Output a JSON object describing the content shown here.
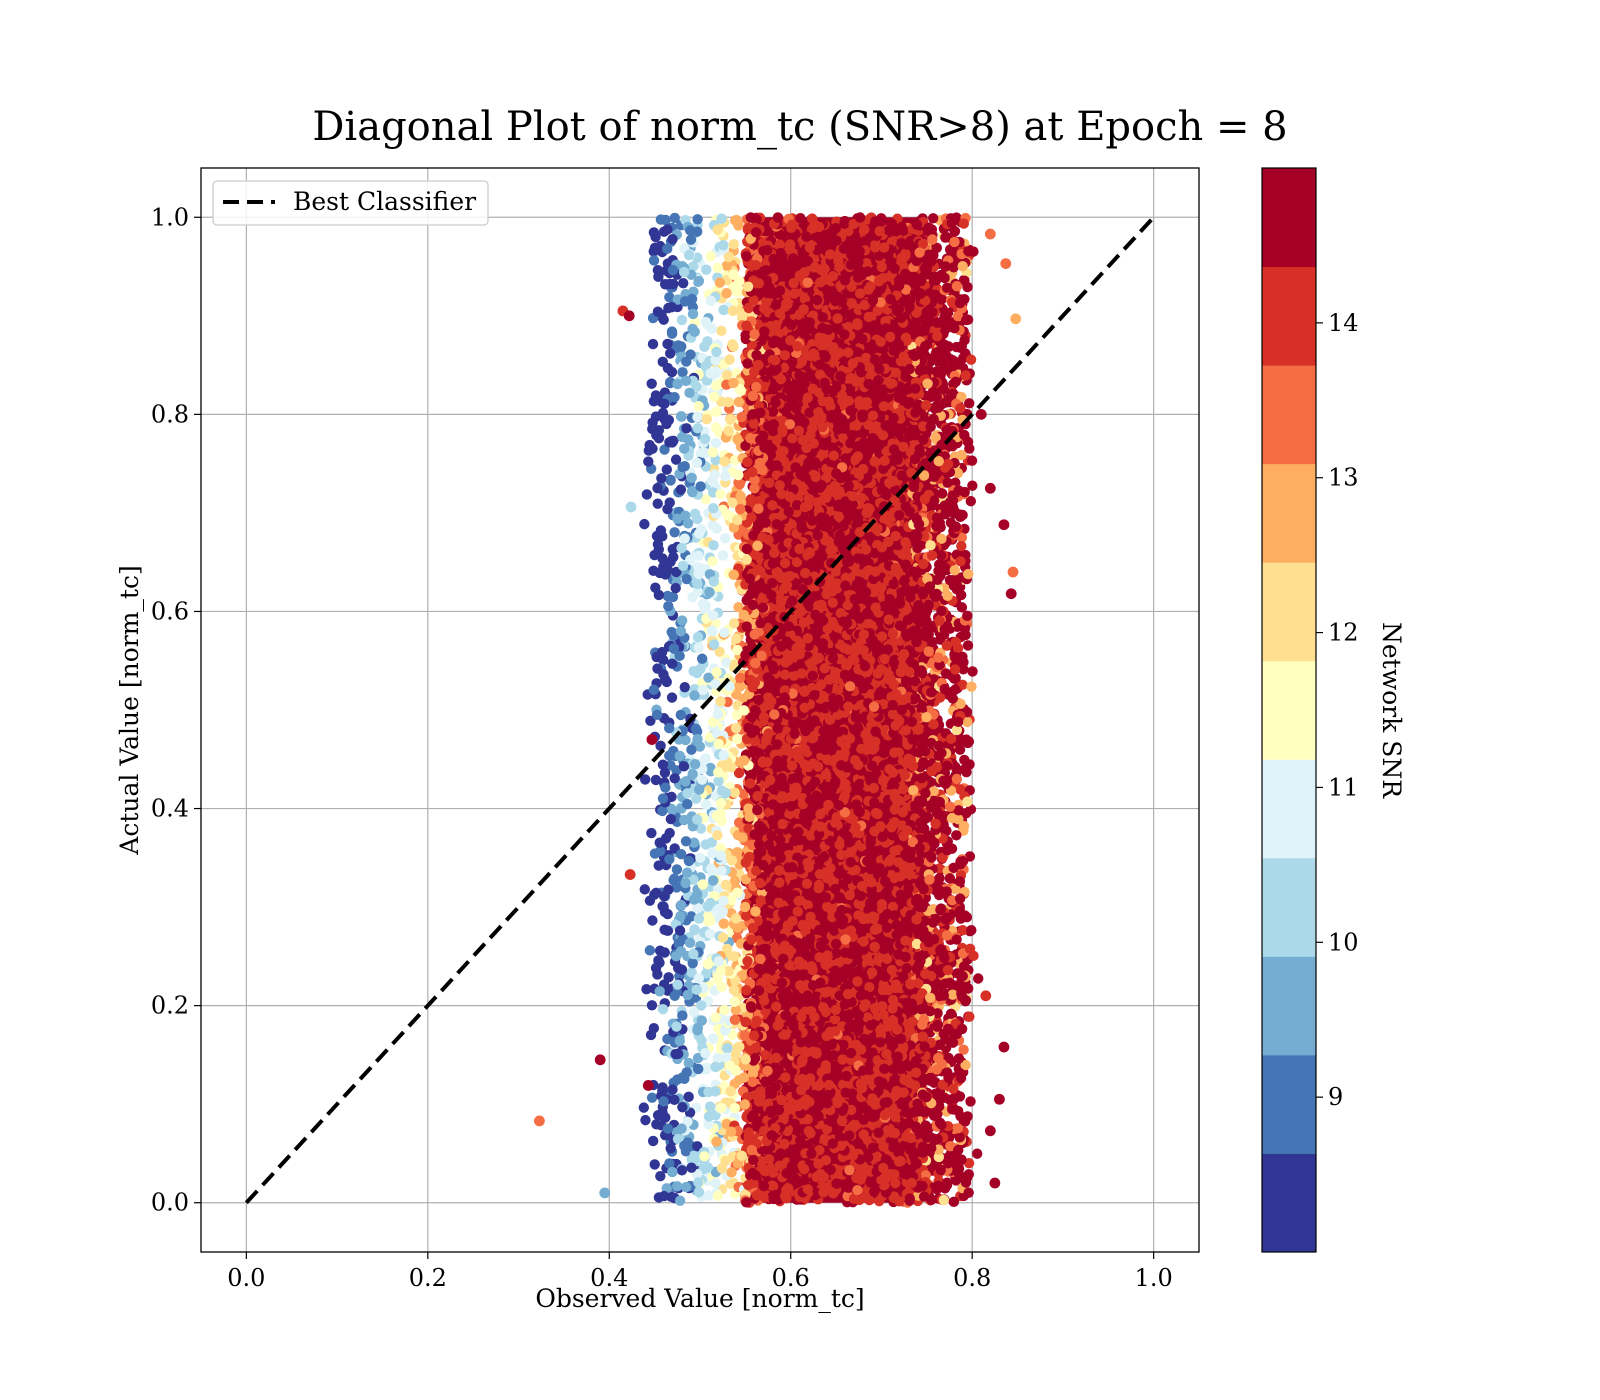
{
  "chart_data": {
    "type": "scatter",
    "title": "Diagonal Plot of norm_tc (SNR>8) at Epoch = 8",
    "xlabel": "Observed Value [norm_tc]",
    "ylabel": "Actual Value [norm_tc]",
    "xlim": [
      -0.05,
      1.05
    ],
    "ylim": [
      -0.05,
      1.05
    ],
    "x_ticks": [
      "0.0",
      "0.2",
      "0.4",
      "0.6",
      "0.8",
      "1.0"
    ],
    "y_ticks": [
      "0.0",
      "0.2",
      "0.4",
      "0.6",
      "0.8",
      "1.0"
    ],
    "grid": true,
    "legend": {
      "placement": "upper-left",
      "entries": [
        "Best Classifier"
      ]
    },
    "reference_line": {
      "name": "Best Classifier",
      "x": [
        0.0,
        1.0
      ],
      "y": [
        0.0,
        1.0
      ],
      "style": "dashed",
      "color": "#000000"
    },
    "colorbar": {
      "label": "Network SNR",
      "range": [
        8,
        15
      ],
      "tick_labels": [
        "9",
        "10",
        "11",
        "12",
        "13",
        "14"
      ],
      "bins": [
        "#313695",
        "#4575b4",
        "#74add1",
        "#abd9e9",
        "#e0f3f8",
        "#ffffbf",
        "#fee090",
        "#fdae61",
        "#f46d43",
        "#d73027",
        "#a50026"
      ]
    },
    "point_cloud": {
      "description_of_distribution": "dense vertical band",
      "x_center": 0.65,
      "x_core_range": [
        0.55,
        0.75
      ],
      "x_spread_range": [
        0.42,
        0.85
      ],
      "y_range": [
        0.0,
        1.0
      ],
      "color_rule": "low SNR points concentrated at left edge, high SNR dominate the core"
    },
    "outliers": [
      {
        "x": 0.323,
        "y": 0.083,
        "snr": 13.2
      },
      {
        "x": 0.39,
        "y": 0.145,
        "snr": 14.6
      },
      {
        "x": 0.395,
        "y": 0.01,
        "snr": 9.3
      },
      {
        "x": 0.423,
        "y": 0.333,
        "snr": 13.8
      },
      {
        "x": 0.415,
        "y": 0.905,
        "snr": 14.1
      },
      {
        "x": 0.422,
        "y": 0.9,
        "snr": 14.6
      },
      {
        "x": 0.424,
        "y": 0.706,
        "snr": 10.5
      },
      {
        "x": 0.443,
        "y": 0.119,
        "snr": 14.6
      },
      {
        "x": 0.447,
        "y": 0.47,
        "snr": 14.6
      },
      {
        "x": 0.848,
        "y": 0.897,
        "snr": 12.6
      },
      {
        "x": 0.843,
        "y": 0.618,
        "snr": 14.6
      },
      {
        "x": 0.845,
        "y": 0.64,
        "snr": 13.2
      },
      {
        "x": 0.835,
        "y": 0.158,
        "snr": 14.6
      },
      {
        "x": 0.83,
        "y": 0.105,
        "snr": 14.6
      },
      {
        "x": 0.825,
        "y": 0.02,
        "snr": 14.6
      },
      {
        "x": 0.837,
        "y": 0.953,
        "snr": 13.2
      },
      {
        "x": 0.82,
        "y": 0.983,
        "snr": 13.2
      },
      {
        "x": 0.81,
        "y": 0.8,
        "snr": 14.6
      },
      {
        "x": 0.82,
        "y": 0.725,
        "snr": 14.6
      },
      {
        "x": 0.835,
        "y": 0.688,
        "snr": 14.6
      },
      {
        "x": 0.815,
        "y": 0.21,
        "snr": 13.8
      },
      {
        "x": 0.82,
        "y": 0.073,
        "snr": 14.6
      }
    ]
  }
}
